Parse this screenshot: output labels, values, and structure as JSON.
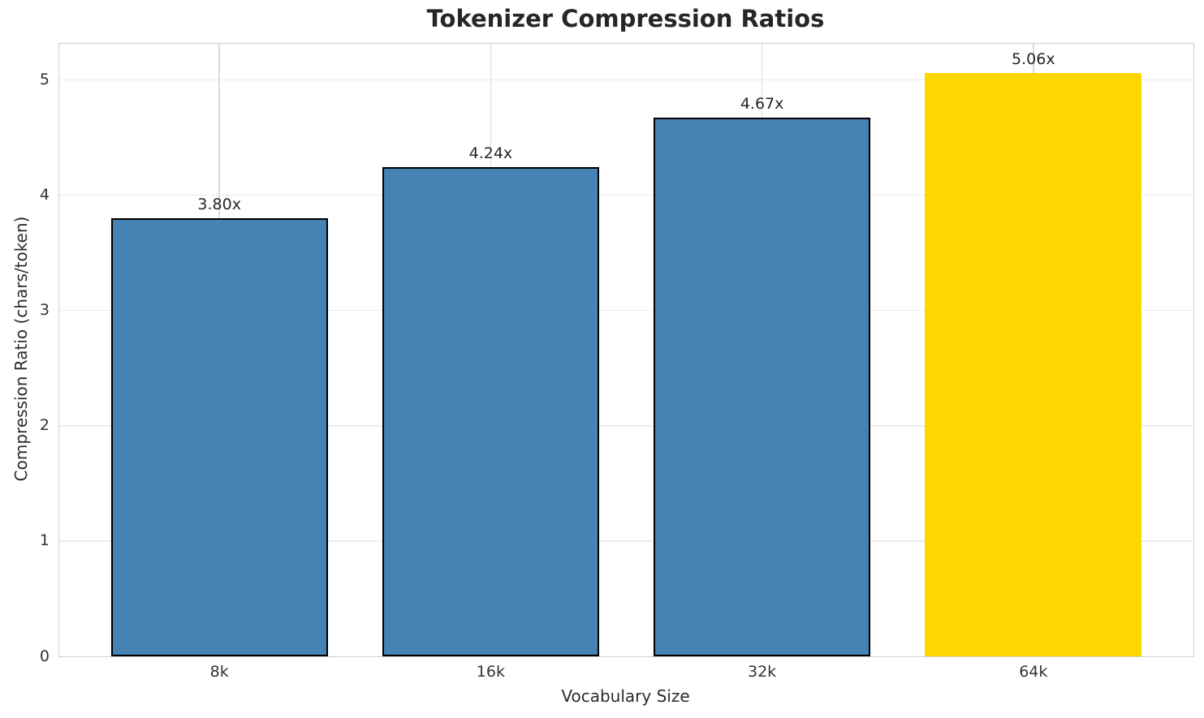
{
  "chart_data": {
    "type": "bar",
    "title": "Tokenizer Compression Ratios",
    "xlabel": "Vocabulary Size",
    "ylabel": "Compression Ratio (chars/token)",
    "categories": [
      "8k",
      "16k",
      "32k",
      "64k"
    ],
    "values": [
      3.8,
      4.24,
      4.67,
      5.06
    ],
    "bar_labels": [
      "3.80x",
      "4.24x",
      "4.67x",
      "5.06x"
    ],
    "bar_colors": [
      "#4682B4",
      "#4682B4",
      "#4682B4",
      "#FFD700"
    ],
    "bar_edge_colors": [
      "#000000",
      "#000000",
      "#000000",
      "none"
    ],
    "highlighted_category": "64k",
    "yticks": [
      0,
      1,
      2,
      3,
      4,
      5
    ],
    "ylim": [
      0,
      5.313
    ],
    "grid": true,
    "legend_position": "none",
    "grid_color_horizontal": "#ececec",
    "grid_color_vertical": "#dcdcdc",
    "spine_color": "#cfcfcf",
    "text_color": "#262626",
    "tick_color": "#333333",
    "background_color": "#ffffff"
  }
}
